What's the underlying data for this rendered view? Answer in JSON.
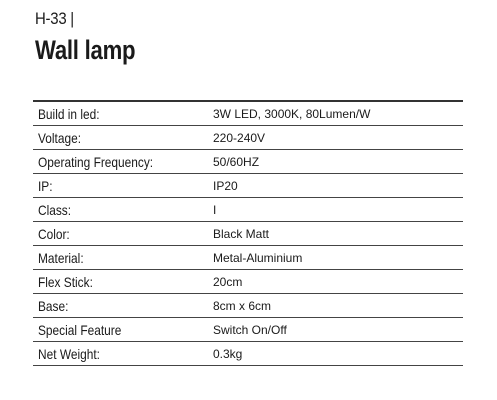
{
  "header": {
    "code": "H-33 |",
    "title": "Wall lamp"
  },
  "table": {
    "rows": [
      [
        "Build in led:",
        "3W LED, 3000K, 80Lumen/W"
      ],
      [
        "Voltage:",
        "220-240V"
      ],
      [
        "Operating Frequency:",
        "50/60HZ"
      ],
      [
        "IP:",
        "IP20"
      ],
      [
        "Class:",
        "I"
      ],
      [
        "Color:",
        "Black Matt"
      ],
      [
        "Material:",
        "Metal-Aluminium"
      ],
      [
        "Flex Stick:",
        "20cm"
      ],
      [
        "Base:",
        "8cm x 6cm"
      ],
      [
        "Special Feature",
        "Switch On/Off"
      ],
      [
        "Net Weight:",
        "0.3kg"
      ]
    ]
  }
}
